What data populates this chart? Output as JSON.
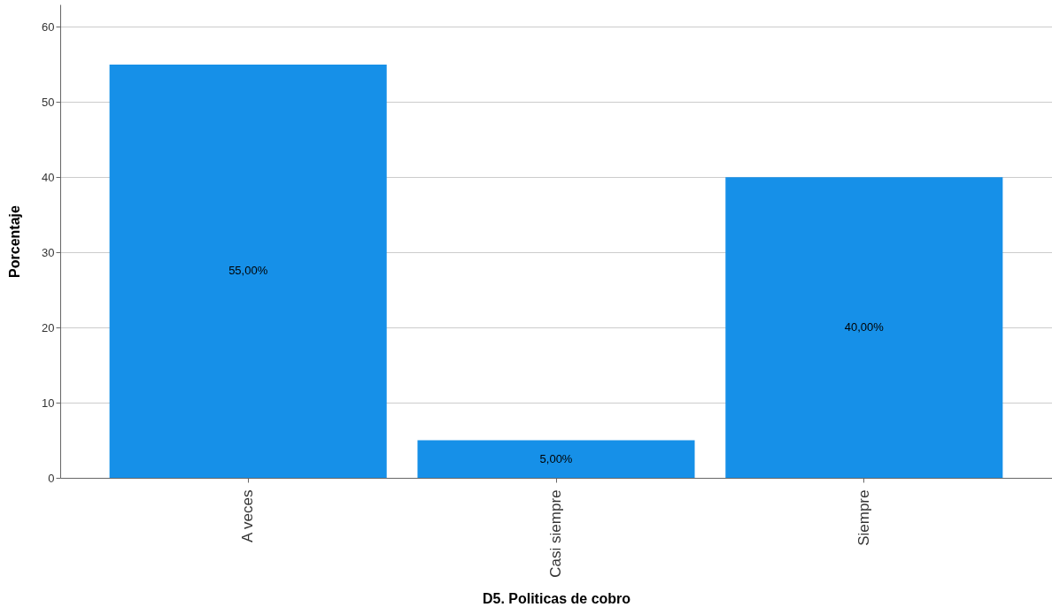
{
  "chart_data": {
    "type": "bar",
    "xlabel": "D5. Politicas de cobro",
    "ylabel": "Porcentaje",
    "categories": [
      "A veces",
      "Casi siempre",
      "Siempre"
    ],
    "values": [
      55,
      5,
      40
    ],
    "value_labels": [
      "55,00%",
      "5,00%",
      "40,00%"
    ],
    "color": "#1690e8",
    "ylim": [
      0,
      63
    ],
    "yticks": [
      0,
      10,
      20,
      30,
      40,
      50,
      60
    ],
    "grid": "y"
  }
}
